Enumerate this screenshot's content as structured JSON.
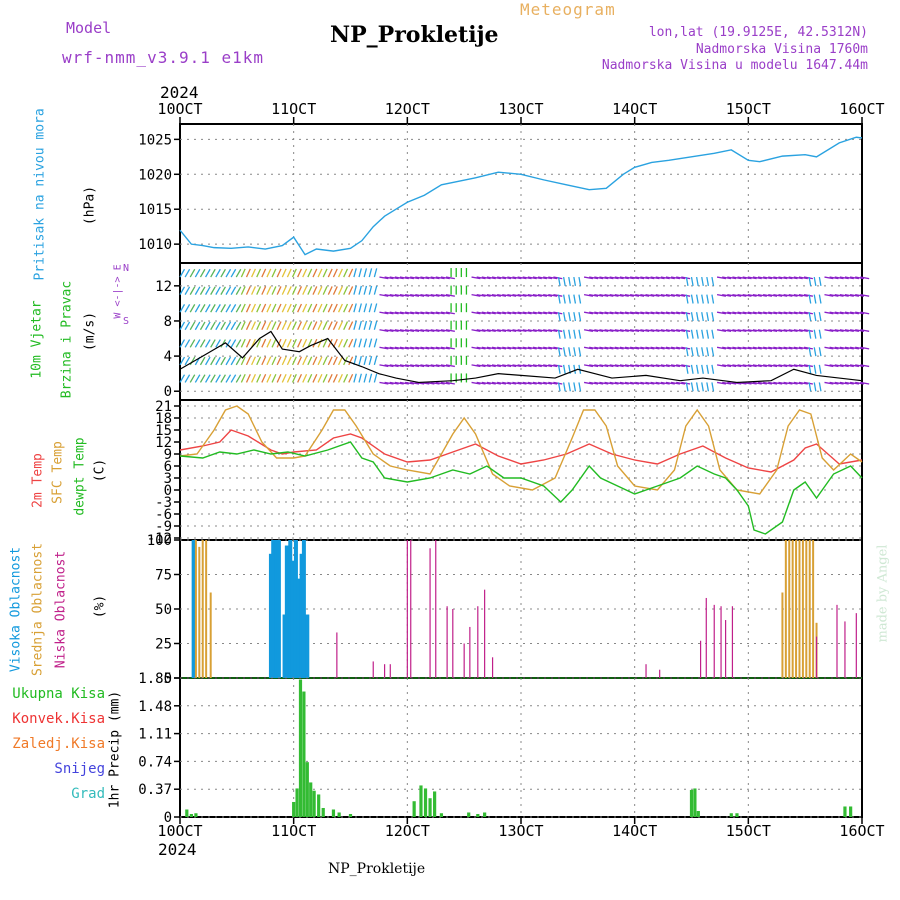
{
  "header": {
    "model_label": "Model",
    "model_name": "wrf-nmm_v3.9.1 e1km",
    "meteogram_label": "Meteogram",
    "station": "NP_Prokletije",
    "lonlat": "lon,lat (19.9125E, 42.5312N)",
    "elevation": "Nadmorska Visina 1760m",
    "model_elevation": "Nadmorska Visina u modelu 1647.44m",
    "footer_station": "NP_Prokletije",
    "credit": "made by Angel",
    "year_top": "2024",
    "year_bottom": "2024"
  },
  "colors": {
    "pressure": "#2aa2e0",
    "temp2m": "#ee4444",
    "sfc_temp": "#d8a035",
    "dewpoint": "#22bb22",
    "high_cloud": "#1199dd",
    "mid_cloud": "#d8a035",
    "low_cloud": "#c0208a",
    "precip": "#33bb33",
    "convective": "#ee3333",
    "freezing": "#f07a28",
    "snow": "#4444dd",
    "hail": "#33bbbb",
    "wind_label": "#22bb22",
    "violet": "#9a3ec8",
    "orange_text": "#e8b060"
  },
  "x_axis": {
    "ticks": [
      "10OCT",
      "11OCT",
      "12OCT",
      "13OCT",
      "14OCT",
      "15OCT",
      "16OCT"
    ],
    "range_days": [
      0,
      6
    ]
  },
  "labels": {
    "pressure": "Pritisak na nivou mora",
    "pressure_unit": "(hPa)",
    "wind_line1": "10m Vjetar",
    "wind_line2": "Brzina i Pravac",
    "wind_unit": "(m/s)",
    "compass": "W <-|-> E",
    "compass_n": "N",
    "compass_s": "S",
    "temp_2m": "2m Temp",
    "temp_sfc": "SFC Temp",
    "temp_dew": "dewpt Temp",
    "temp_unit": "(C)",
    "cloud_high": "Visoka Oblacnost",
    "cloud_mid": "Srednja Oblacnost",
    "cloud_low": "Niska Oblacnost",
    "cloud_unit": "(%)",
    "precip_total": "Ukupna Kisa",
    "precip_conv": "Konvek.Kisa",
    "precip_freeze": "Zaledj.Kisa",
    "precip_snow": "Snijeg",
    "precip_hail": "Grad",
    "precip_unit": "1hr Precip (mm)"
  },
  "chart_data": [
    {
      "type": "line",
      "name": "pressure",
      "ylim": [
        1007.3,
        1027.2
      ],
      "yticks": [
        "1010",
        "1015",
        "1020",
        "1025"
      ],
      "x": [
        0,
        0.1,
        0.2,
        0.3,
        0.45,
        0.6,
        0.75,
        0.9,
        1.0,
        1.1,
        1.2,
        1.35,
        1.5,
        1.6,
        1.7,
        1.8,
        1.9,
        2.0,
        2.15,
        2.3,
        2.45,
        2.6,
        2.8,
        3.0,
        3.2,
        3.4,
        3.6,
        3.75,
        3.9,
        4.0,
        4.15,
        4.3,
        4.5,
        4.7,
        4.85,
        5.0,
        5.1,
        5.3,
        5.5,
        5.6,
        5.8,
        5.95,
        6.0
      ],
      "values": [
        1012.0,
        1010.0,
        1009.8,
        1009.5,
        1009.4,
        1009.6,
        1009.3,
        1009.8,
        1011.0,
        1008.5,
        1009.3,
        1009.0,
        1009.4,
        1010.5,
        1012.5,
        1014.0,
        1015.0,
        1016.0,
        1017.0,
        1018.5,
        1019.0,
        1019.5,
        1020.3,
        1020.0,
        1019.2,
        1018.5,
        1017.8,
        1018.0,
        1020.0,
        1021.0,
        1021.7,
        1022.0,
        1022.5,
        1023.0,
        1023.5,
        1022.0,
        1021.8,
        1022.6,
        1022.8,
        1022.5,
        1024.5,
        1025.3,
        1025.2
      ]
    },
    {
      "type": "line",
      "name": "wind_speed",
      "ylim": [
        -1,
        14.6
      ],
      "yticks": [
        "0",
        "4",
        "8",
        "12"
      ],
      "x": [
        0,
        0.2,
        0.4,
        0.55,
        0.7,
        0.8,
        0.9,
        1.05,
        1.15,
        1.3,
        1.45,
        1.6,
        1.75,
        1.9,
        2.1,
        2.4,
        2.6,
        2.8,
        3.0,
        3.3,
        3.5,
        3.8,
        4.1,
        4.4,
        4.6,
        4.9,
        5.2,
        5.4,
        5.6,
        5.8,
        6.0
      ],
      "values": [
        2.5,
        4.0,
        5.5,
        3.8,
        6.0,
        6.8,
        4.8,
        4.5,
        5.2,
        6.0,
        3.5,
        2.8,
        2.0,
        1.5,
        1.0,
        1.2,
        1.5,
        2.0,
        1.8,
        1.5,
        2.5,
        1.5,
        1.8,
        1.2,
        1.5,
        1.0,
        1.2,
        2.5,
        1.8,
        1.5,
        1.2
      ],
      "arrows": "decorative wind barbs, direction classes by color: green (N), yellow (SW), blue (S), violet (W), red (E)"
    },
    {
      "type": "line",
      "name": "temperature",
      "ylim": [
        -12.5,
        22.5
      ],
      "yticks": [
        "21",
        "18",
        "15",
        "12",
        "9",
        "6",
        "3",
        "0",
        "-3",
        "-6",
        "-9",
        "-12"
      ],
      "series": [
        {
          "name": "2m Temp",
          "x": [
            0,
            0.2,
            0.35,
            0.45,
            0.6,
            0.8,
            0.9,
            1.0,
            1.2,
            1.35,
            1.5,
            1.6,
            1.8,
            2.0,
            2.2,
            2.4,
            2.6,
            2.8,
            3.0,
            3.2,
            3.4,
            3.6,
            3.8,
            4.0,
            4.2,
            4.4,
            4.6,
            4.8,
            5.0,
            5.2,
            5.4,
            5.5,
            5.6,
            5.7,
            5.8,
            6.0
          ],
          "values": [
            10,
            11,
            12,
            15,
            13.5,
            10,
            9,
            9.5,
            10,
            13,
            14,
            13,
            9,
            7,
            7.5,
            9.5,
            11.5,
            8.5,
            6.5,
            7.5,
            9,
            11.5,
            9,
            7.5,
            6.5,
            9,
            11,
            8,
            5.5,
            4.5,
            7.5,
            10.5,
            11.5,
            9,
            6.5,
            7.5
          ]
        },
        {
          "name": "SFC Temp",
          "x": [
            0,
            0.15,
            0.3,
            0.4,
            0.5,
            0.6,
            0.72,
            0.85,
            1.0,
            1.1,
            1.25,
            1.35,
            1.45,
            1.55,
            1.7,
            1.85,
            2.0,
            2.2,
            2.4,
            2.5,
            2.6,
            2.75,
            2.9,
            3.1,
            3.3,
            3.45,
            3.55,
            3.65,
            3.75,
            3.85,
            4.0,
            4.2,
            4.35,
            4.45,
            4.55,
            4.65,
            4.75,
            4.9,
            5.1,
            5.25,
            5.35,
            5.45,
            5.55,
            5.65,
            5.75,
            5.9,
            6.0
          ],
          "values": [
            8.5,
            9,
            15,
            20,
            21,
            19,
            12,
            8,
            8,
            8.5,
            15,
            20,
            20,
            16,
            9,
            6,
            5,
            4,
            14,
            18,
            14,
            4,
            1,
            0,
            3,
            13,
            20,
            20,
            16,
            6,
            1,
            0,
            5,
            16,
            20,
            16,
            5,
            0,
            -1,
            5,
            16,
            20,
            19,
            8,
            5,
            9,
            7
          ]
        },
        {
          "name": "dewpt Temp",
          "x": [
            0,
            0.2,
            0.35,
            0.5,
            0.65,
            0.8,
            0.95,
            1.1,
            1.3,
            1.5,
            1.6,
            1.7,
            1.8,
            2.0,
            2.2,
            2.4,
            2.55,
            2.7,
            2.85,
            3.0,
            3.2,
            3.35,
            3.45,
            3.6,
            3.7,
            3.85,
            4.0,
            4.2,
            4.4,
            4.55,
            4.7,
            4.8,
            4.9,
            5.0,
            5.05,
            5.15,
            5.3,
            5.4,
            5.5,
            5.6,
            5.75,
            5.9,
            6.0
          ],
          "values": [
            8.5,
            8,
            9.5,
            9,
            10,
            9,
            9.5,
            8.5,
            10,
            12,
            8,
            7,
            3,
            2,
            3,
            5,
            4,
            6,
            3,
            3,
            1,
            -3,
            0,
            6,
            3,
            1,
            -1,
            1,
            3,
            6,
            4,
            3,
            0,
            -4,
            -10,
            -11,
            -8,
            0,
            2,
            -2,
            4,
            6,
            3
          ]
        }
      ]
    },
    {
      "type": "bar",
      "name": "cloud_cover",
      "ylim": [
        0,
        100
      ],
      "yticks": [
        "0",
        "25",
        "50",
        "75",
        "100"
      ],
      "series": [
        {
          "name": "Visoka Oblacnost",
          "x": [
            0.12,
            0.8,
            0.82,
            0.85,
            0.87,
            0.92,
            0.94,
            0.97,
            0.99,
            1.02,
            1.04,
            1.07,
            1.09,
            1.12,
            1.15
          ],
          "values": [
            100,
            90,
            100,
            100,
            100,
            46,
            96,
            100,
            85,
            100,
            72,
            90,
            100,
            46,
            0
          ]
        },
        {
          "name": "Srednja Oblacnost",
          "x": [
            0.14,
            0.17,
            0.2,
            0.23,
            0.27,
            5.3,
            5.33,
            5.36,
            5.39,
            5.42,
            5.45,
            5.48,
            5.51,
            5.54,
            5.57,
            5.6
          ],
          "values": [
            100,
            95,
            100,
            100,
            62,
            62,
            100,
            100,
            100,
            100,
            100,
            100,
            100,
            100,
            100,
            40
          ]
        },
        {
          "name": "Niska Oblacnost",
          "x": [
            1.38,
            1.7,
            1.8,
            1.85,
            2.0,
            2.03,
            2.2,
            2.25,
            2.35,
            2.4,
            2.5,
            2.55,
            2.62,
            2.68,
            2.75,
            4.1,
            4.22,
            4.58,
            4.63,
            4.7,
            4.76,
            4.8,
            4.86,
            5.6,
            5.78,
            5.85,
            5.95
          ],
          "values": [
            33,
            12,
            10,
            10,
            100,
            100,
            94,
            100,
            52,
            50,
            25,
            37,
            52,
            64,
            15,
            10,
            6,
            27,
            58,
            53,
            52,
            42,
            52,
            30,
            53,
            41,
            47
          ]
        }
      ]
    },
    {
      "type": "bar",
      "name": "precipitation_1hr",
      "ylim": [
        0,
        1.85
      ],
      "yticks": [
        "0",
        "0.37",
        "0.74",
        "1.11",
        "1.48",
        "1.85"
      ],
      "series": [
        {
          "name": "Ukupna Kisa",
          "x": [
            0.06,
            0.1,
            0.14,
            1.0,
            1.03,
            1.06,
            1.09,
            1.12,
            1.15,
            1.18,
            1.22,
            1.26,
            1.35,
            1.4,
            1.5,
            2.06,
            2.12,
            2.16,
            2.2,
            2.24,
            2.3,
            2.54,
            2.62,
            2.68,
            4.5,
            4.53,
            4.56,
            4.85,
            4.9,
            5.85,
            5.9
          ],
          "values": [
            0.1,
            0.04,
            0.05,
            0.2,
            0.38,
            1.83,
            1.67,
            0.73,
            0.46,
            0.35,
            0.3,
            0.12,
            0.1,
            0.06,
            0.04,
            0.21,
            0.42,
            0.38,
            0.25,
            0.34,
            0.05,
            0.06,
            0.04,
            0.06,
            0.36,
            0.38,
            0.08,
            0.05,
            0.05,
            0.14,
            0.14
          ]
        }
      ]
    }
  ]
}
